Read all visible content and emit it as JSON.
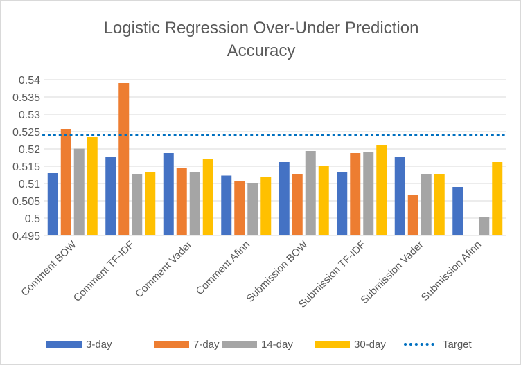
{
  "chart_data": {
    "type": "bar",
    "title_lines": [
      "Logistic Regression Over-Under Prediction",
      "Accuracy"
    ],
    "categories": [
      "Comment BOW",
      "Comment TF-IDF",
      "Comment Vader",
      "Comment Afinn",
      "Submission BOW",
      "Submission TF-IDF",
      "Submission Vader",
      "Submission Afinn"
    ],
    "series": [
      {
        "name": "3-day",
        "color": "#4472C4",
        "values": [
          0.513,
          0.5178,
          0.5188,
          0.5123,
          0.5162,
          0.5133,
          0.5178,
          0.509
        ]
      },
      {
        "name": "7-day",
        "color": "#ED7D31",
        "values": [
          0.5258,
          0.539,
          0.5146,
          0.5108,
          0.5128,
          0.5188,
          0.5068,
          null
        ]
      },
      {
        "name": "14-day",
        "color": "#A5A5A5",
        "values": [
          0.5201,
          0.5128,
          0.5133,
          0.5102,
          0.5194,
          0.519,
          0.5128,
          0.5004
        ]
      },
      {
        "name": "30-day",
        "color": "#FFC000",
        "values": [
          0.5234,
          0.5134,
          0.5172,
          0.5118,
          0.515,
          0.5211,
          0.5128,
          0.5162
        ]
      }
    ],
    "reference_line": {
      "name": "Target",
      "value": 0.524,
      "color": "#0070C0",
      "style": "dotted"
    },
    "ylim": [
      0.495,
      0.54
    ],
    "yticks": [
      "0.495",
      "0.5",
      "0.505",
      "0.51",
      "0.515",
      "0.52",
      "0.525",
      "0.53",
      "0.535",
      "0.54"
    ],
    "grid": "horizontal",
    "legend_position": "bottom"
  }
}
